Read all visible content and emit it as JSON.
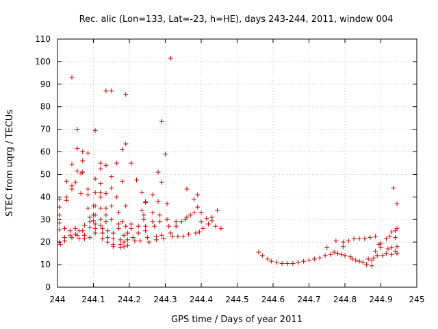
{
  "chart_data": {
    "type": "scatter",
    "title": "Rec. alic (Lon=133, Lat=-23, h=HE), days 243-244, 2011, window 004",
    "xlabel": "GPS time / Days of year 2011",
    "ylabel": "STEC from uqrg / TECUs",
    "xlim": [
      244,
      245
    ],
    "ylim": [
      0,
      110
    ],
    "xticks": [
      "244",
      "244.1",
      "244.2",
      "244.3",
      "244.4",
      "244.5",
      "244.6",
      "244.7",
      "244.8",
      "244.9",
      "245"
    ],
    "yticks": [
      "0",
      "10",
      "20",
      "30",
      "40",
      "50",
      "60",
      "70",
      "80",
      "90",
      "100",
      "110"
    ],
    "grid": true,
    "marker": "+",
    "color": "#cc0000",
    "series": [
      {
        "points": [
          [
            244.005,
            39
          ],
          [
            244.005,
            35.5
          ],
          [
            244.005,
            32
          ],
          [
            244.005,
            28.5
          ],
          [
            244.005,
            25.5
          ],
          [
            244.005,
            20
          ],
          [
            244.008,
            19
          ],
          [
            244.02,
            26
          ],
          [
            244.02,
            22
          ],
          [
            244.02,
            20.5
          ],
          [
            244.025,
            47
          ],
          [
            244.025,
            40
          ],
          [
            244.025,
            38.5
          ],
          [
            244.035,
            25
          ],
          [
            244.035,
            23
          ],
          [
            244.04,
            54.5
          ],
          [
            244.04,
            45
          ],
          [
            244.04,
            43.5
          ],
          [
            244.04,
            22
          ],
          [
            244.04,
            93
          ],
          [
            244.05,
            46.5
          ],
          [
            244.05,
            26
          ],
          [
            244.05,
            23.5
          ],
          [
            244.055,
            70
          ],
          [
            244.055,
            61.5
          ],
          [
            244.055,
            51.5
          ],
          [
            244.055,
            23
          ],
          [
            244.06,
            25
          ],
          [
            244.06,
            21.5
          ],
          [
            244.065,
            50.5
          ],
          [
            244.065,
            41.5
          ],
          [
            244.07,
            60
          ],
          [
            244.07,
            56
          ],
          [
            244.07,
            51
          ],
          [
            244.07,
            25
          ],
          [
            244.075,
            27.5
          ],
          [
            244.075,
            23
          ],
          [
            244.075,
            21.5
          ],
          [
            244.085,
            59.5
          ],
          [
            244.085,
            43.5
          ],
          [
            244.085,
            41
          ],
          [
            244.085,
            35
          ],
          [
            244.09,
            31
          ],
          [
            244.09,
            29
          ],
          [
            244.09,
            26.5
          ],
          [
            244.09,
            22
          ],
          [
            244.1,
            36
          ],
          [
            244.1,
            32
          ],
          [
            244.1,
            29.5
          ],
          [
            244.105,
            69.5
          ],
          [
            244.105,
            48
          ],
          [
            244.105,
            42
          ],
          [
            244.105,
            36
          ],
          [
            244.105,
            32
          ],
          [
            244.105,
            28
          ],
          [
            244.105,
            26
          ],
          [
            244.105,
            24
          ],
          [
            244.12,
            55
          ],
          [
            244.12,
            52.5
          ],
          [
            244.12,
            46
          ],
          [
            244.12,
            42
          ],
          [
            244.12,
            40
          ],
          [
            244.12,
            35
          ],
          [
            244.12,
            30
          ],
          [
            244.12,
            27.5
          ],
          [
            244.125,
            26
          ],
          [
            244.125,
            24
          ],
          [
            244.125,
            21.5
          ],
          [
            244.135,
            87
          ],
          [
            244.135,
            54
          ],
          [
            244.135,
            41.5
          ],
          [
            244.135,
            35
          ],
          [
            244.135,
            32
          ],
          [
            244.135,
            29
          ],
          [
            244.14,
            25
          ],
          [
            244.14,
            22
          ],
          [
            244.14,
            20
          ],
          [
            244.15,
            87
          ],
          [
            244.15,
            49
          ],
          [
            244.15,
            44
          ],
          [
            244.15,
            36
          ],
          [
            244.15,
            30
          ],
          [
            244.155,
            24
          ],
          [
            244.155,
            21.5
          ],
          [
            244.155,
            19
          ],
          [
            244.155,
            18
          ],
          [
            244.165,
            55
          ],
          [
            244.165,
            40
          ],
          [
            244.17,
            33
          ],
          [
            244.17,
            28
          ],
          [
            244.17,
            26
          ],
          [
            244.175,
            21
          ],
          [
            244.175,
            19
          ],
          [
            244.175,
            17.5
          ],
          [
            244.18,
            61
          ],
          [
            244.18,
            47
          ],
          [
            244.18,
            29
          ],
          [
            244.185,
            23
          ],
          [
            244.185,
            20
          ],
          [
            244.185,
            18
          ],
          [
            244.19,
            85.5
          ],
          [
            244.19,
            63.5
          ],
          [
            244.19,
            36
          ],
          [
            244.19,
            27
          ],
          [
            244.195,
            24
          ],
          [
            244.195,
            21
          ],
          [
            244.195,
            18.5
          ],
          [
            244.205,
            55
          ],
          [
            244.205,
            28
          ],
          [
            244.205,
            26
          ],
          [
            244.21,
            22
          ],
          [
            244.215,
            20.5
          ],
          [
            244.22,
            47.5
          ],
          [
            244.225,
            27
          ],
          [
            244.225,
            24
          ],
          [
            244.23,
            20.5
          ],
          [
            244.235,
            42
          ],
          [
            244.235,
            34
          ],
          [
            244.24,
            32
          ],
          [
            244.24,
            30
          ],
          [
            244.245,
            38
          ],
          [
            244.245,
            37.5
          ],
          [
            244.245,
            27
          ],
          [
            244.245,
            25
          ],
          [
            244.25,
            22
          ],
          [
            244.255,
            20
          ],
          [
            244.265,
            41
          ],
          [
            244.265,
            33
          ],
          [
            244.265,
            29
          ],
          [
            244.27,
            27
          ],
          [
            244.275,
            22.5
          ],
          [
            244.275,
            21
          ],
          [
            244.28,
            51
          ],
          [
            244.28,
            38
          ],
          [
            244.285,
            32
          ],
          [
            244.285,
            29
          ],
          [
            244.29,
            73.5
          ],
          [
            244.29,
            46.5
          ],
          [
            244.29,
            23
          ],
          [
            244.295,
            21.5
          ],
          [
            244.3,
            59
          ],
          [
            244.305,
            37
          ],
          [
            244.305,
            30
          ],
          [
            244.31,
            27
          ],
          [
            244.315,
            101.5
          ],
          [
            244.315,
            24
          ],
          [
            244.32,
            22.5
          ],
          [
            244.33,
            29
          ],
          [
            244.33,
            27
          ],
          [
            244.335,
            22.5
          ],
          [
            244.345,
            29
          ],
          [
            244.35,
            22.5
          ],
          [
            244.355,
            30
          ],
          [
            244.36,
            43.5
          ],
          [
            244.36,
            31
          ],
          [
            244.365,
            23.5
          ],
          [
            244.37,
            32
          ],
          [
            244.38,
            39
          ],
          [
            244.38,
            33
          ],
          [
            244.385,
            24
          ],
          [
            244.39,
            41
          ],
          [
            244.39,
            35.5
          ],
          [
            244.395,
            24.5
          ],
          [
            244.4,
            33
          ],
          [
            244.4,
            29
          ],
          [
            244.405,
            26
          ],
          [
            244.415,
            30.5
          ],
          [
            244.42,
            28
          ],
          [
            244.43,
            31
          ],
          [
            244.43,
            29.5
          ],
          [
            244.44,
            27
          ],
          [
            244.445,
            34
          ],
          [
            244.455,
            26
          ],
          [
            244.56,
            15.5
          ],
          [
            244.57,
            14
          ],
          [
            244.585,
            12.5
          ],
          [
            244.595,
            11.5
          ],
          [
            244.61,
            11
          ],
          [
            244.625,
            10.5
          ],
          [
            244.64,
            10.5
          ],
          [
            244.655,
            10.5
          ],
          [
            244.67,
            11
          ],
          [
            244.685,
            11.5
          ],
          [
            244.7,
            12
          ],
          [
            244.715,
            12.5
          ],
          [
            244.73,
            13
          ],
          [
            244.745,
            14
          ],
          [
            244.75,
            17.5
          ],
          [
            244.76,
            14.5
          ],
          [
            244.77,
            15.5
          ],
          [
            244.775,
            20.5
          ],
          [
            244.78,
            15
          ],
          [
            244.79,
            14.5
          ],
          [
            244.795,
            20
          ],
          [
            244.795,
            18
          ],
          [
            244.8,
            14
          ],
          [
            244.81,
            20.5
          ],
          [
            244.815,
            13.5
          ],
          [
            244.82,
            12.5
          ],
          [
            244.825,
            21.5
          ],
          [
            244.83,
            12
          ],
          [
            244.84,
            11.5
          ],
          [
            244.84,
            21.5
          ],
          [
            244.85,
            11
          ],
          [
            244.855,
            21.5
          ],
          [
            244.86,
            10
          ],
          [
            244.865,
            12.5
          ],
          [
            244.87,
            22
          ],
          [
            244.875,
            9.5
          ],
          [
            244.875,
            12
          ],
          [
            244.88,
            13
          ],
          [
            244.885,
            22.5
          ],
          [
            244.885,
            16
          ],
          [
            244.89,
            14
          ],
          [
            244.895,
            19
          ],
          [
            244.9,
            19.5
          ],
          [
            244.9,
            17.5
          ],
          [
            244.905,
            14
          ],
          [
            244.915,
            21.5
          ],
          [
            244.915,
            15
          ],
          [
            244.92,
            17
          ],
          [
            244.925,
            22.5
          ],
          [
            244.93,
            24.5
          ],
          [
            244.93,
            17.5
          ],
          [
            244.93,
            14.5
          ],
          [
            244.935,
            44
          ],
          [
            244.94,
            25
          ],
          [
            244.94,
            22
          ],
          [
            244.94,
            16
          ],
          [
            244.945,
            37
          ],
          [
            244.945,
            26
          ],
          [
            244.945,
            18
          ],
          [
            244.945,
            15
          ]
        ]
      }
    ]
  }
}
